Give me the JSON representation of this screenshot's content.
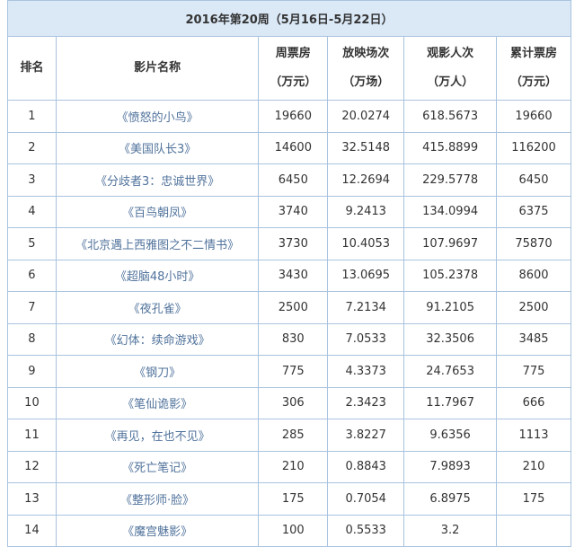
{
  "table": {
    "title": "2016年第20周（5月16日-5月22日）",
    "header": [
      [
        "排名"
      ],
      [
        "影片名称"
      ],
      [
        "周票房",
        "（万元）"
      ],
      [
        "放映场次",
        "（万场）"
      ],
      [
        "观影人次",
        "（万人）"
      ],
      [
        "累计票房",
        "（万元）"
      ]
    ],
    "rows": [
      [
        1,
        "《愤怒的小鸟》",
        19660,
        20.0274,
        618.5673,
        19660
      ],
      [
        2,
        "《美国队长3》",
        14600,
        32.5148,
        415.8899,
        116200
      ],
      [
        3,
        "《分歧者3：忠诚世界》",
        6450,
        12.2694,
        229.5778,
        6450
      ],
      [
        4,
        "《百鸟朝凤》",
        3740,
        9.2413,
        134.0994,
        6375
      ],
      [
        5,
        "《北京遇上西雅图之不二情书》",
        3730,
        10.4053,
        107.9697,
        75870
      ],
      [
        6,
        "《超脑48小时》",
        3430,
        13.0695,
        105.2378,
        8600
      ],
      [
        7,
        "《夜孔雀》",
        2500,
        7.2134,
        91.2105,
        2500
      ],
      [
        8,
        "《幻体：续命游戏》",
        830,
        7.0533,
        32.3506,
        3485
      ],
      [
        9,
        "《钢刀》",
        775,
        4.3373,
        24.7653,
        775
      ],
      [
        10,
        "《笔仙诡影》",
        306,
        2.3423,
        11.7967,
        666
      ],
      [
        11,
        "《再见，在也不见》",
        285,
        3.8227,
        9.6356,
        1113
      ],
      [
        12,
        "《死亡笔记》",
        210,
        0.8843,
        7.9893,
        210
      ],
      [
        13,
        "《整形师·脸》",
        175,
        0.7054,
        6.8975,
        175
      ],
      [
        14,
        "《魔宫魅影》",
        100,
        0.5533,
        3.2,
        null
      ]
    ]
  }
}
